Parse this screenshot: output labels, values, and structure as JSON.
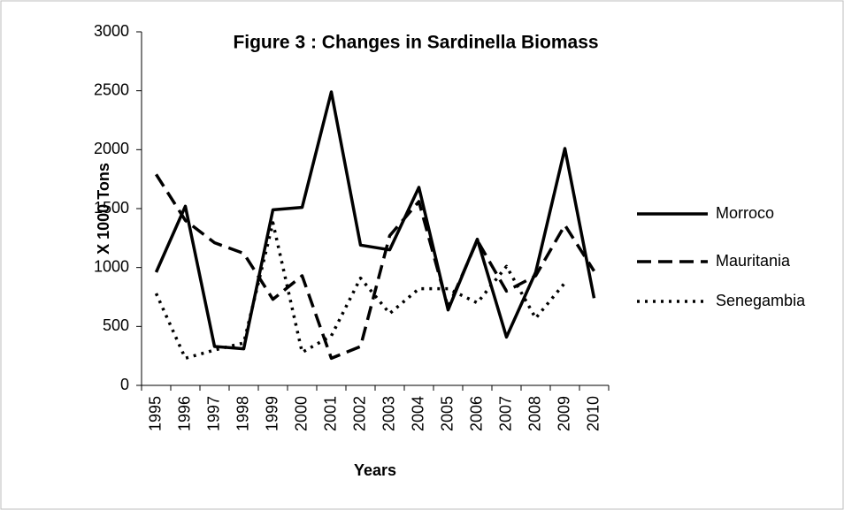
{
  "chart_data": {
    "type": "line",
    "title": "Figure 3 : Changes in Sardinella Biomass",
    "x_label": "Years",
    "y_label": "X 1000 Tons",
    "categories": [
      "1995",
      "1996",
      "1997",
      "1998",
      "1999",
      "2000",
      "2001",
      "2002",
      "2003",
      "2004",
      "2005",
      "2006",
      "2007",
      "2008",
      "2009",
      "2010"
    ],
    "series": [
      {
        "name": "Morroco",
        "color": "#000000",
        "dash": "solid",
        "values": [
          960,
          1520,
          330,
          310,
          1490,
          1510,
          2490,
          1190,
          1150,
          1680,
          640,
          1240,
          410,
          960,
          2010,
          740
        ]
      },
      {
        "name": "Mauritania",
        "color": "#000000",
        "dash": "dashed",
        "values": [
          1790,
          1400,
          1210,
          1120,
          730,
          930,
          230,
          330,
          1270,
          1560,
          660,
          1230,
          800,
          930,
          1360,
          970
        ]
      },
      {
        "name": "Senegambia",
        "color": "#000000",
        "dash": "dotted",
        "values": [
          780,
          230,
          300,
          360,
          1380,
          280,
          420,
          910,
          610,
          820,
          820,
          700,
          1010,
          570,
          870,
          null
        ]
      }
    ],
    "ylim": [
      0,
      3000
    ],
    "yticks": [
      0,
      500,
      1000,
      1500,
      2000,
      2500,
      3000
    ],
    "grid": false,
    "legend": "right"
  }
}
